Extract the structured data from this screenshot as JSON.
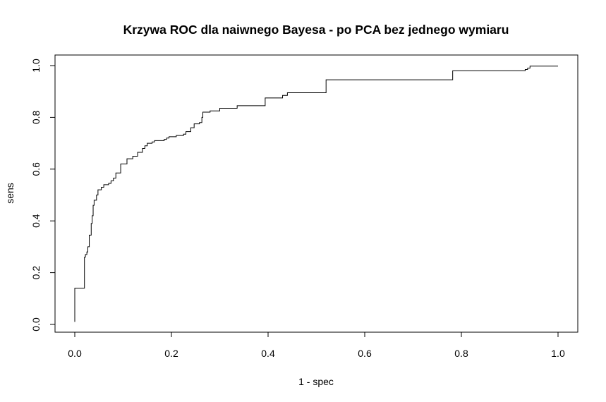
{
  "chart_data": {
    "type": "line",
    "title": "Krzywa ROC dla naiwnego Bayesa - po PCA bez jednego wymiaru",
    "xlabel": "1 - spec",
    "ylabel": "sens",
    "xlim": [
      0,
      1
    ],
    "ylim": [
      0,
      1
    ],
    "x_ticks": [
      "0.0",
      "0.2",
      "0.4",
      "0.6",
      "0.8",
      "1.0"
    ],
    "y_ticks": [
      "0.0",
      "0.2",
      "0.4",
      "0.6",
      "0.8",
      "1.0"
    ],
    "grid": false,
    "legend": "none",
    "line_color": "#000000",
    "series": [
      {
        "step": true,
        "points": [
          [
            0.0,
            0.01
          ],
          [
            0.0,
            0.14
          ],
          [
            0.02,
            0.14
          ],
          [
            0.02,
            0.26
          ],
          [
            0.022,
            0.27
          ],
          [
            0.025,
            0.28
          ],
          [
            0.027,
            0.3
          ],
          [
            0.03,
            0.345
          ],
          [
            0.034,
            0.39
          ],
          [
            0.036,
            0.42
          ],
          [
            0.038,
            0.46
          ],
          [
            0.04,
            0.48
          ],
          [
            0.045,
            0.5
          ],
          [
            0.048,
            0.52
          ],
          [
            0.055,
            0.53
          ],
          [
            0.06,
            0.54
          ],
          [
            0.07,
            0.545
          ],
          [
            0.075,
            0.555
          ],
          [
            0.08,
            0.565
          ],
          [
            0.085,
            0.585
          ],
          [
            0.095,
            0.62
          ],
          [
            0.108,
            0.64
          ],
          [
            0.12,
            0.65
          ],
          [
            0.13,
            0.665
          ],
          [
            0.14,
            0.68
          ],
          [
            0.145,
            0.69
          ],
          [
            0.15,
            0.7
          ],
          [
            0.16,
            0.705
          ],
          [
            0.165,
            0.71
          ],
          [
            0.185,
            0.715
          ],
          [
            0.19,
            0.72
          ],
          [
            0.195,
            0.725
          ],
          [
            0.21,
            0.73
          ],
          [
            0.225,
            0.735
          ],
          [
            0.23,
            0.745
          ],
          [
            0.24,
            0.76
          ],
          [
            0.247,
            0.775
          ],
          [
            0.258,
            0.78
          ],
          [
            0.263,
            0.8
          ],
          [
            0.265,
            0.82
          ],
          [
            0.28,
            0.825
          ],
          [
            0.3,
            0.835
          ],
          [
            0.336,
            0.845
          ],
          [
            0.394,
            0.875
          ],
          [
            0.43,
            0.885
          ],
          [
            0.44,
            0.895
          ],
          [
            0.52,
            0.945
          ],
          [
            0.782,
            0.98
          ],
          [
            0.932,
            0.985
          ],
          [
            0.937,
            0.99
          ],
          [
            0.942,
            0.998
          ],
          [
            1.0,
            0.998
          ]
        ]
      }
    ]
  }
}
